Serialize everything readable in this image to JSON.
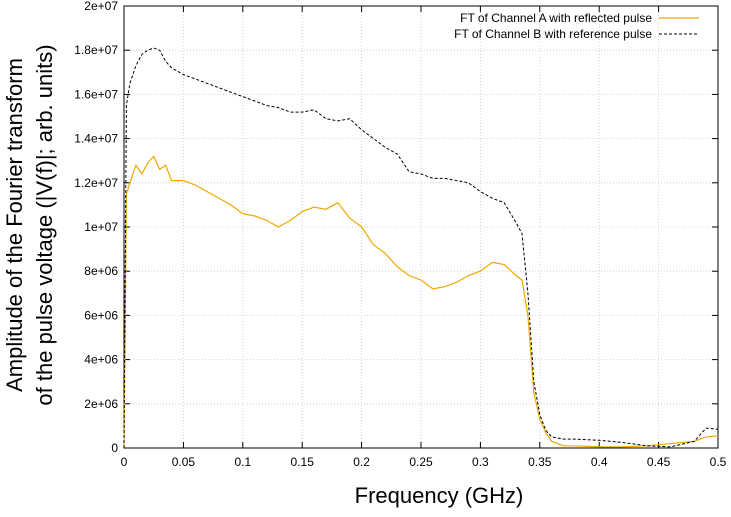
{
  "chart_data": {
    "type": "line",
    "title": "",
    "xlabel": "Frequency (GHz)",
    "ylabel_line1": "Amplitude of the Fourier transform",
    "ylabel_line2": "of the pulse voltage (|V(f)|; arb. units)",
    "xlim": [
      0,
      0.5
    ],
    "ylim": [
      0,
      20000000
    ],
    "grid": true,
    "legend_position": "top-right",
    "x_ticks": [
      0,
      0.05,
      0.1,
      0.15,
      0.2,
      0.25,
      0.3,
      0.35,
      0.4,
      0.45,
      0.5
    ],
    "x_tick_labels": [
      "0",
      "0.05",
      "0.1",
      "0.15",
      "0.2",
      "0.25",
      "0.3",
      "0.35",
      "0.4",
      "0.45",
      "0.5"
    ],
    "y_ticks": [
      0,
      2000000,
      4000000,
      6000000,
      8000000,
      10000000,
      12000000,
      14000000,
      16000000,
      18000000,
      20000000
    ],
    "y_tick_labels": [
      "0",
      "2e+06",
      "4e+06",
      "6e+06",
      "8e+06",
      "1e+07",
      "1.2e+07",
      "1.4e+07",
      "1.6e+07",
      "1.8e+07",
      "2e+07"
    ],
    "series": [
      {
        "name": "FT of Channel A with reflected pulse",
        "color": "#f0a800",
        "style": "solid",
        "x": [
          0,
          0.002,
          0.005,
          0.01,
          0.015,
          0.02,
          0.025,
          0.03,
          0.035,
          0.04,
          0.05,
          0.06,
          0.07,
          0.08,
          0.09,
          0.1,
          0.11,
          0.12,
          0.13,
          0.14,
          0.15,
          0.16,
          0.17,
          0.18,
          0.19,
          0.2,
          0.21,
          0.22,
          0.23,
          0.24,
          0.25,
          0.26,
          0.27,
          0.28,
          0.29,
          0.3,
          0.31,
          0.32,
          0.33,
          0.335,
          0.34,
          0.345,
          0.35,
          0.355,
          0.36,
          0.37,
          0.38,
          0.4,
          0.42,
          0.44,
          0.46,
          0.48,
          0.49,
          0.5
        ],
        "y": [
          0,
          11500000,
          12000000,
          12800000,
          12400000,
          12900000,
          13200000,
          12600000,
          12800000,
          12100000,
          12100000,
          11900000,
          11600000,
          11300000,
          11000000,
          10600000,
          10500000,
          10300000,
          10000000,
          10300000,
          10700000,
          10900000,
          10800000,
          11100000,
          10400000,
          10000000,
          9200000,
          8800000,
          8200000,
          7800000,
          7600000,
          7200000,
          7300000,
          7500000,
          7800000,
          8000000,
          8400000,
          8300000,
          7800000,
          7600000,
          6000000,
          2500000,
          1300000,
          700000,
          300000,
          100000,
          100000,
          50000,
          50000,
          100000,
          200000,
          300000,
          500000,
          550000
        ]
      },
      {
        "name": "FT of Channel B with reference pulse",
        "color": "#000000",
        "style": "dashed",
        "x": [
          0,
          0.002,
          0.005,
          0.01,
          0.015,
          0.02,
          0.025,
          0.03,
          0.035,
          0.04,
          0.05,
          0.06,
          0.07,
          0.08,
          0.09,
          0.1,
          0.11,
          0.12,
          0.13,
          0.14,
          0.15,
          0.16,
          0.17,
          0.18,
          0.19,
          0.2,
          0.21,
          0.22,
          0.23,
          0.24,
          0.25,
          0.26,
          0.27,
          0.28,
          0.29,
          0.3,
          0.31,
          0.32,
          0.33,
          0.335,
          0.34,
          0.345,
          0.35,
          0.355,
          0.36,
          0.37,
          0.38,
          0.4,
          0.42,
          0.44,
          0.46,
          0.48,
          0.49,
          0.5
        ],
        "y": [
          0,
          15500000,
          16500000,
          17300000,
          17800000,
          18000000,
          18100000,
          18000000,
          17500000,
          17200000,
          16900000,
          16700000,
          16500000,
          16300000,
          16100000,
          15900000,
          15700000,
          15500000,
          15400000,
          15200000,
          15200000,
          15300000,
          14900000,
          14800000,
          14900000,
          14400000,
          14000000,
          13600000,
          13300000,
          12500000,
          12400000,
          12200000,
          12200000,
          12100000,
          12000000,
          11600000,
          11300000,
          11100000,
          10200000,
          9700000,
          7000000,
          3000000,
          1500000,
          800000,
          500000,
          400000,
          400000,
          350000,
          250000,
          100000,
          50000,
          300000,
          900000,
          850000
        ]
      }
    ]
  }
}
